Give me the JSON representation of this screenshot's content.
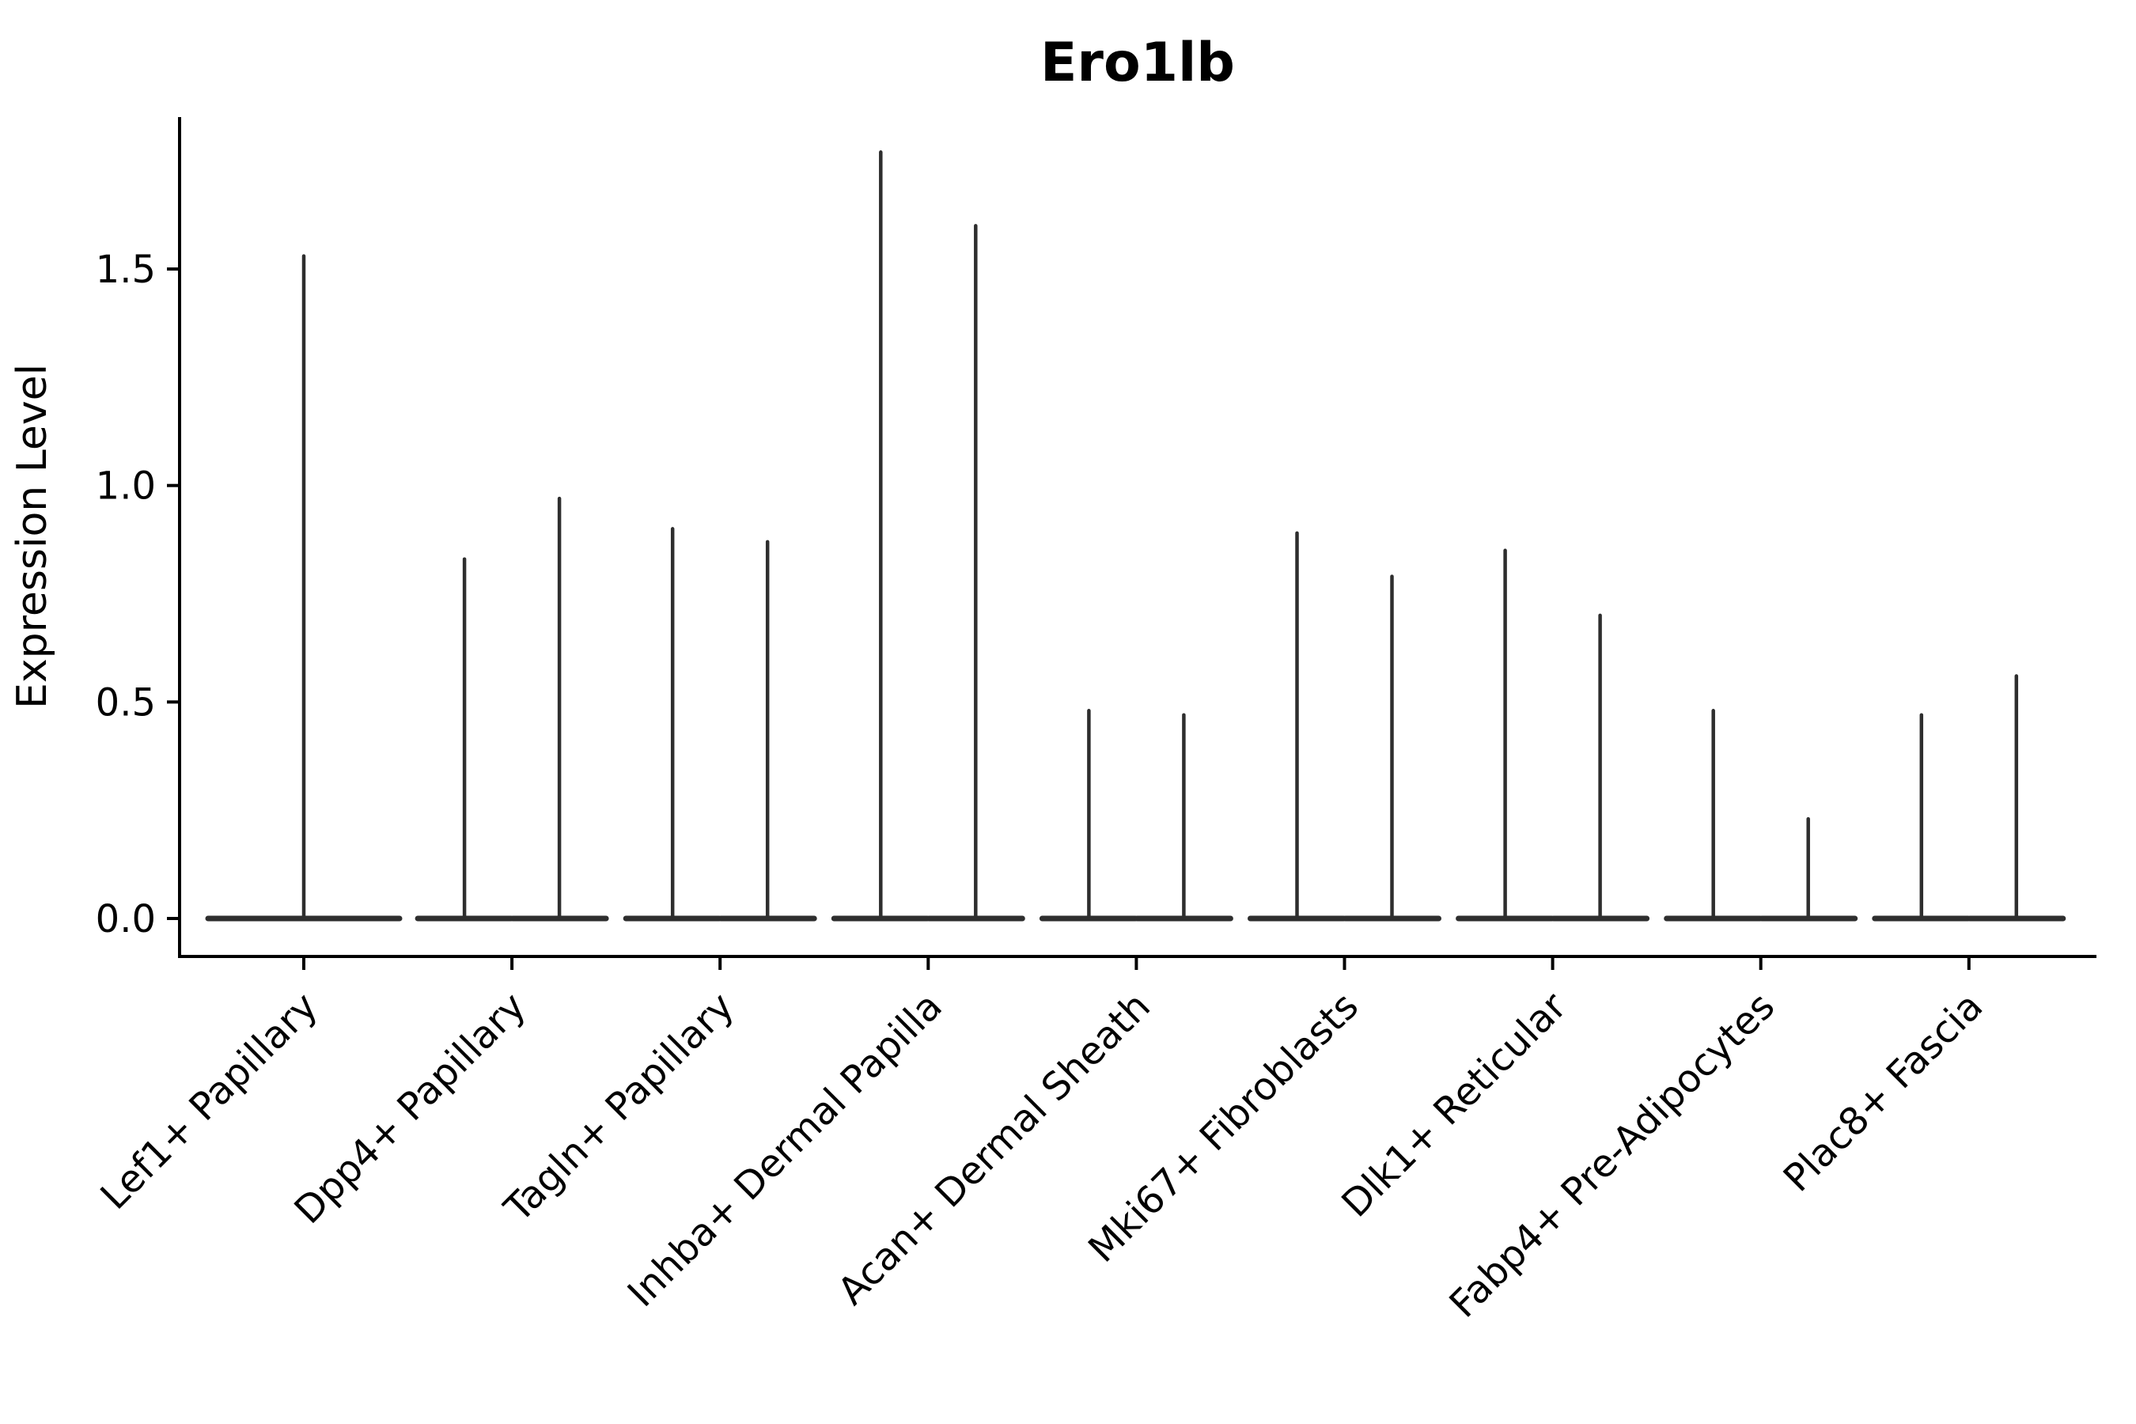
{
  "chart_data": {
    "type": "violin",
    "title": "Ero1lb",
    "ylabel": "Expression Level",
    "xlabel": "",
    "yticks": [
      {
        "label": "0.0",
        "value": 0.0
      },
      {
        "label": "0.5",
        "value": 0.5
      },
      {
        "label": "1.0",
        "value": 1.0
      },
      {
        "label": "1.5",
        "value": 1.5
      }
    ],
    "ylim": [
      -0.088,
      1.851
    ],
    "grid": false,
    "legend": null,
    "axis_color": "#000000",
    "violin_color": "#2e2e2e",
    "categories": [
      "Lef1+ Papillary",
      "Dpp4+ Papillary",
      "Tagln+ Papillary",
      "Inhba+ Dermal Papilla",
      "Acan+ Dermal Sheath",
      "Mki67+ Fibroblasts",
      "Dlk1+ Reticular",
      "Fabp4+ Pre-Adipocytes",
      "Plac8+ Fascia"
    ],
    "groups": [
      {
        "label": "Lef1+ Papillary",
        "spike_maxima": [
          1.53
        ]
      },
      {
        "label": "Dpp4+ Papillary",
        "spike_maxima": [
          0.83,
          0.97
        ]
      },
      {
        "label": "Tagln+ Papillary",
        "spike_maxima": [
          0.9,
          0.87
        ]
      },
      {
        "label": "Inhba+ Dermal Papilla",
        "spike_maxima": [
          1.77,
          1.6
        ]
      },
      {
        "label": "Acan+ Dermal Sheath",
        "spike_maxima": [
          0.48,
          0.47
        ]
      },
      {
        "label": "Mki67+ Fibroblasts",
        "spike_maxima": [
          0.89,
          0.79
        ]
      },
      {
        "label": "Dlk1+ Reticular",
        "spike_maxima": [
          0.85,
          0.7
        ]
      },
      {
        "label": "Fabp4+ Pre-Adipocytes",
        "spike_maxima": [
          0.48,
          0.23
        ]
      },
      {
        "label": "Plac8+ Fascia",
        "spike_maxima": [
          0.47,
          0.56
        ]
      }
    ]
  }
}
